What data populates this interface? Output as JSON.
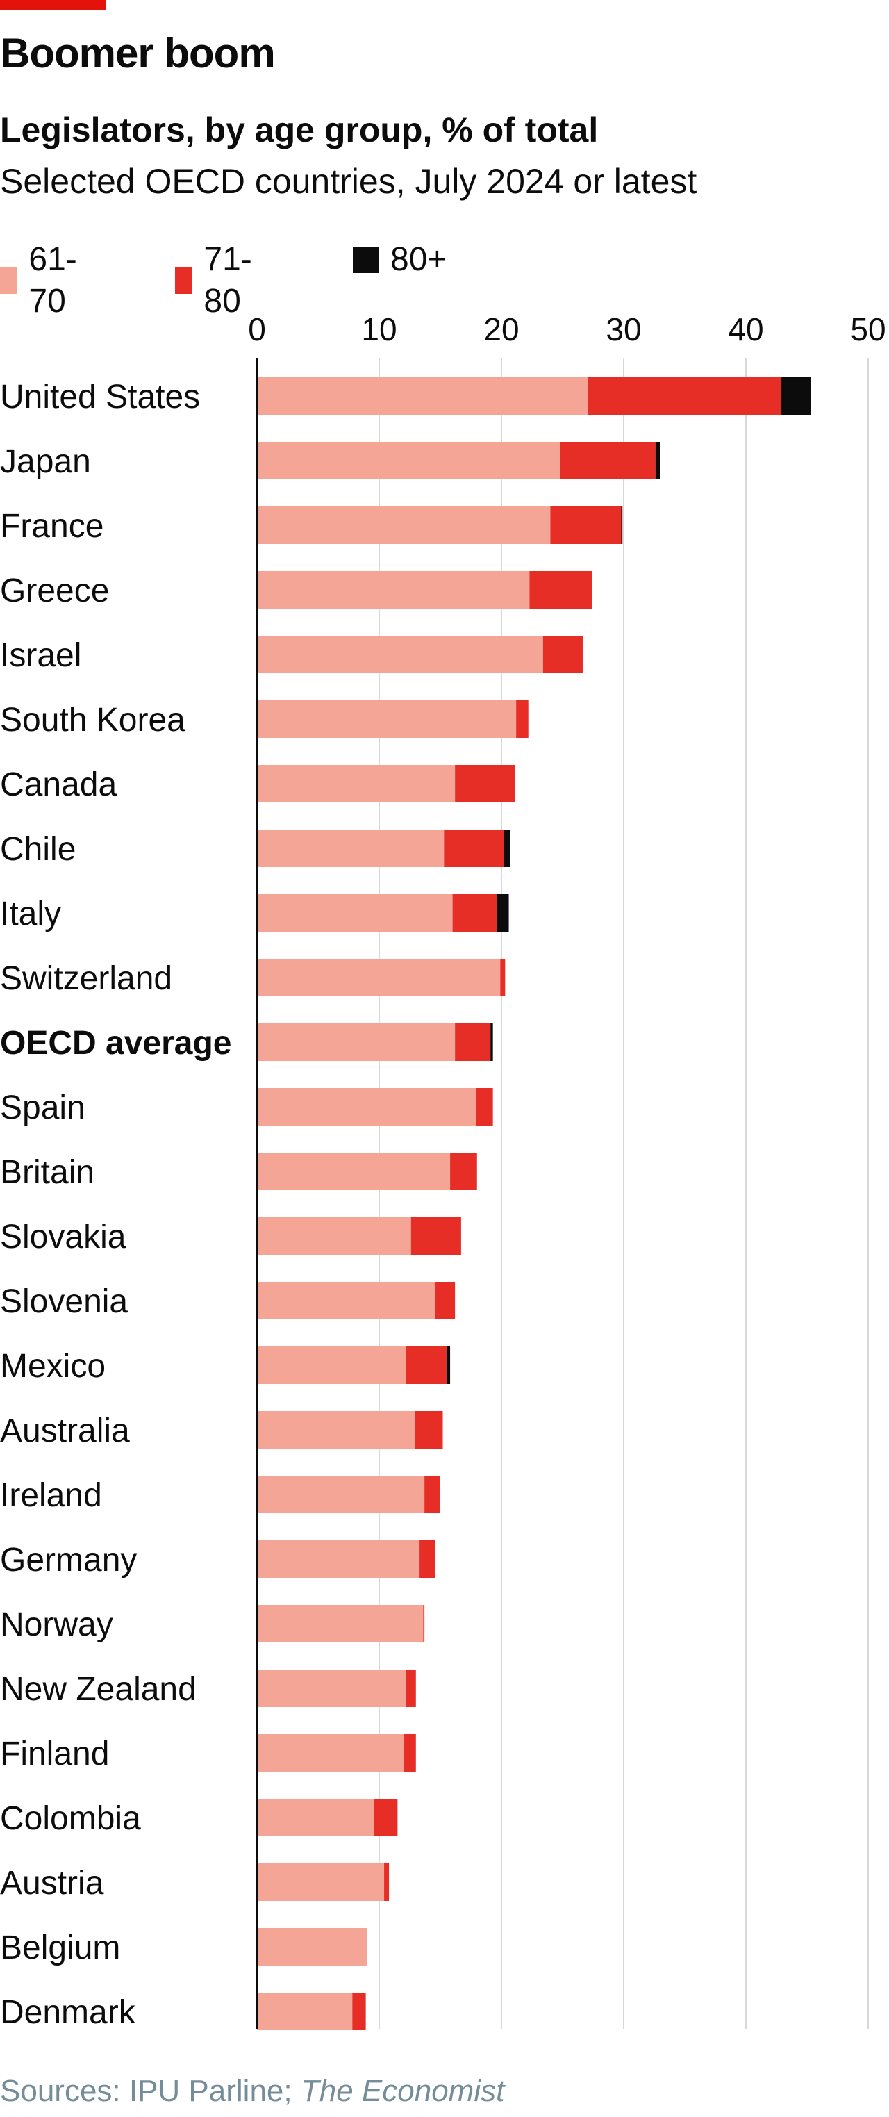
{
  "header": {
    "title": "Boomer boom",
    "subtitle": "Legislators, by age group, % of total",
    "subtitle2": "Selected OECD countries, July 2024 or latest"
  },
  "colors": {
    "brand_red": "#e3120b",
    "s61_70": "#f4a596",
    "s71_80": "#e62e26",
    "s80plus": "#0c0c0c",
    "grid": "#d8d8d8",
    "source": "#758d99"
  },
  "legend": [
    {
      "label": "61-70",
      "color": "#f4a596"
    },
    {
      "label": "71-80",
      "color": "#e62e26"
    },
    {
      "label": "80+",
      "color": "#0c0c0c"
    }
  ],
  "chart_data": {
    "type": "bar",
    "orientation": "horizontal",
    "stacked": true,
    "xlim": [
      0,
      50
    ],
    "x_ticks": [
      "0",
      "10",
      "20",
      "30",
      "40",
      "50"
    ],
    "grid": true,
    "legend_position": "top-left",
    "categories": [
      "United States",
      "Japan",
      "France",
      "Greece",
      "Israel",
      "South Korea",
      "Canada",
      "Chile",
      "Italy",
      "Switzerland",
      "OECD average",
      "Spain",
      "Britain",
      "Slovakia",
      "Slovenia",
      "Mexico",
      "Australia",
      "Ireland",
      "Germany",
      "Norway",
      "New Zealand",
      "Finland",
      "Colombia",
      "Austria",
      "Belgium",
      "Denmark"
    ],
    "highlight": "OECD average",
    "series": [
      {
        "name": "61-70",
        "values": [
          27.1,
          24.8,
          24.0,
          22.3,
          23.4,
          21.2,
          16.2,
          15.3,
          16.0,
          19.9,
          16.2,
          17.9,
          15.8,
          12.6,
          14.6,
          12.2,
          12.9,
          13.7,
          13.3,
          13.6,
          12.2,
          12.0,
          9.6,
          10.4,
          9.0,
          7.8
        ]
      },
      {
        "name": "71-80",
        "values": [
          15.8,
          7.8,
          5.8,
          5.1,
          3.3,
          1.0,
          4.9,
          4.9,
          3.6,
          0.4,
          2.9,
          1.4,
          2.2,
          4.1,
          1.6,
          3.3,
          2.3,
          1.3,
          1.3,
          0.1,
          0.8,
          1.0,
          1.9,
          0.4,
          0.0,
          1.1
        ]
      },
      {
        "name": "80+",
        "values": [
          2.4,
          0.4,
          0.1,
          0.0,
          0.0,
          0.0,
          0.0,
          0.5,
          1.0,
          0.0,
          0.2,
          0.0,
          0.0,
          0.0,
          0.0,
          0.3,
          0.0,
          0.0,
          0.0,
          0.0,
          0.0,
          0.0,
          0.0,
          0.0,
          0.0,
          0.0
        ]
      }
    ]
  },
  "source": {
    "prefix": "Sources: IPU Parline; ",
    "italic": "The Economist"
  }
}
